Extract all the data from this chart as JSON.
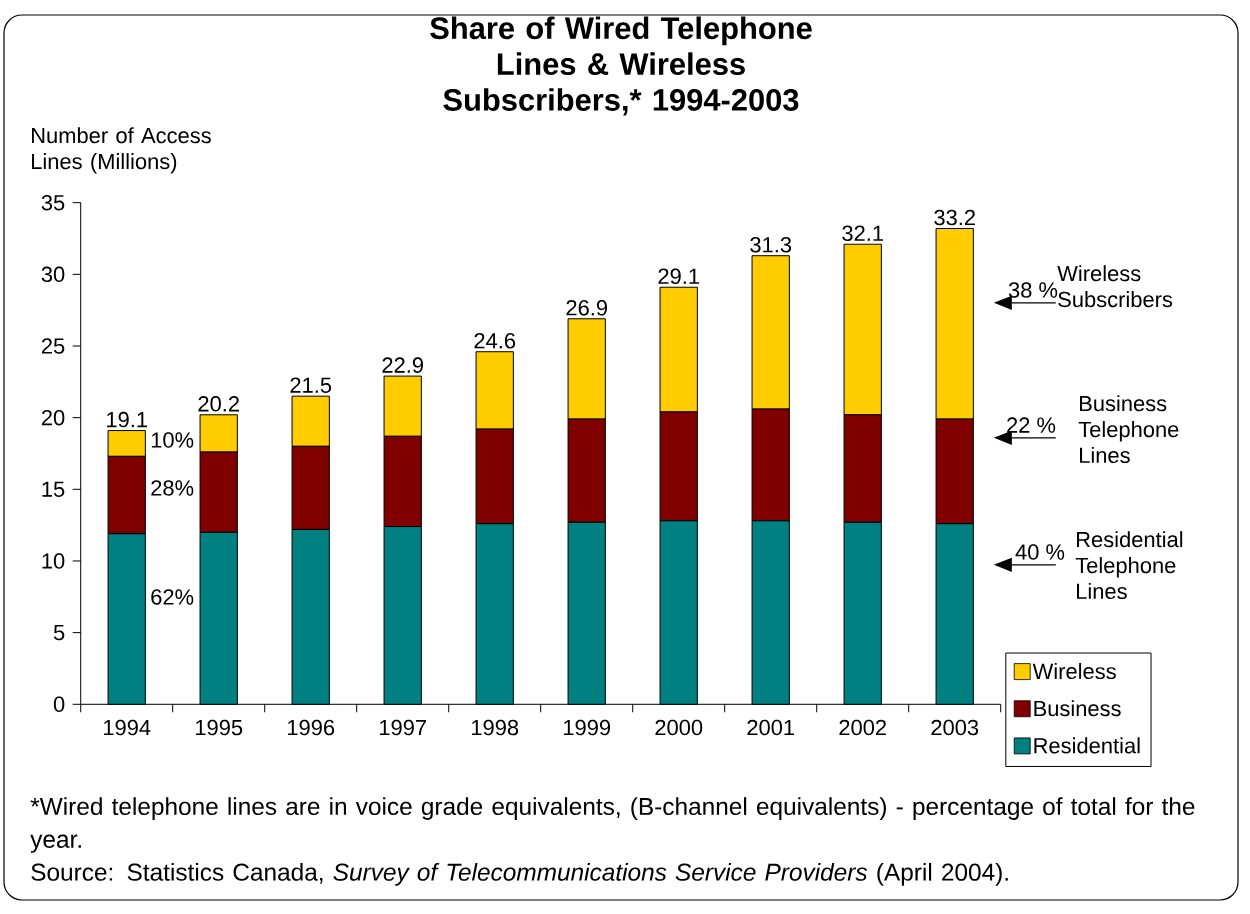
{
  "chart_data": {
    "type": "bar",
    "stacked": true,
    "title": "Share of Wired Telephone Lines & Wireless Subscribers,* 1994-2003",
    "ylabel": "Number of Access Lines (Millions)",
    "categories": [
      "1994",
      "1995",
      "1996",
      "1997",
      "1998",
      "1999",
      "2000",
      "2001",
      "2002",
      "2003"
    ],
    "series": [
      {
        "name": "Residential",
        "color": "#008080",
        "values": [
          11.9,
          12.0,
          12.2,
          12.4,
          12.6,
          12.7,
          12.8,
          12.8,
          12.7,
          12.6
        ]
      },
      {
        "name": "Business",
        "color": "#800000",
        "values": [
          5.4,
          5.6,
          5.8,
          6.3,
          6.6,
          7.2,
          7.6,
          7.8,
          7.5,
          7.3
        ]
      },
      {
        "name": "Wireless",
        "color": "#ffcc00",
        "values": [
          1.8,
          2.6,
          3.5,
          4.2,
          5.4,
          7.0,
          8.7,
          10.7,
          11.9,
          13.3
        ]
      }
    ],
    "totals": [
      "19.1",
      "20.2",
      "21.5",
      "22.9",
      "24.6",
      "26.9",
      "29.1",
      "31.3",
      "32.1",
      "33.2"
    ],
    "ylim": [
      0,
      35
    ],
    "yticks": [
      0,
      5,
      10,
      15,
      20,
      25,
      30,
      35
    ],
    "grid": false,
    "legend": "bottom right",
    "annotations": [
      "10%",
      "28%",
      "62%",
      "38 %",
      "Wireless Subscribers",
      "22 %",
      "Business Telephone Lines",
      "40 %",
      "Residential Telephone Lines",
      "*Wired telephone lines are in voice grade equivalents, (B-channel equivalents) - percentage of total for the year.",
      "Source: Statistics Canada, *Survey of Telecommunications Service Providers* (April 2004)."
    ]
  }
}
